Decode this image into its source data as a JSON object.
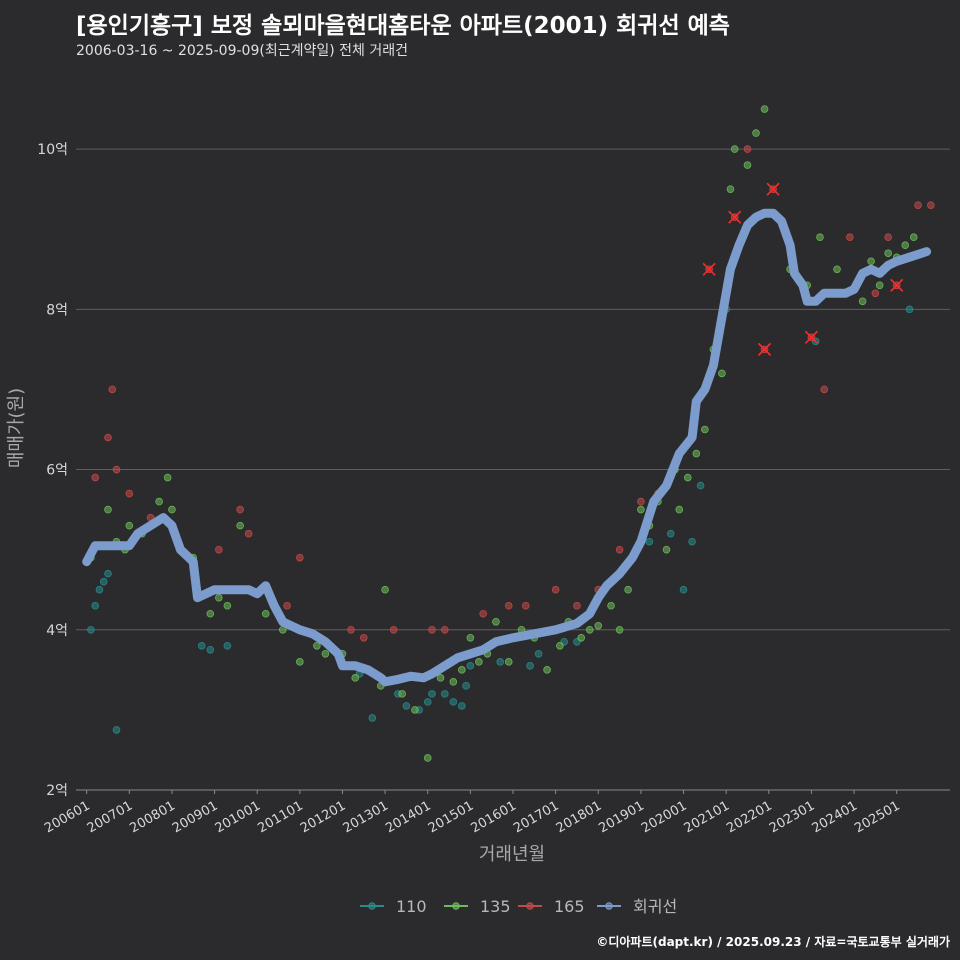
{
  "header": {
    "title": "[용인기흥구] 보정 솔뫼마을현대홈타운 아파트(2001) 회귀선 예측",
    "subtitle": "2006-03-16 ~ 2025-09-09(최근계약일) 전체 거래건"
  },
  "footer": {
    "credit": "©디아파트(dapt.kr) / 2025.09.23 / 자료=국토교통부 실거래가"
  },
  "colors": {
    "background": "#2b2b2d",
    "grid": "#5e5e60",
    "s110": "#2a8a8a",
    "s135": "#6dbb5a",
    "s165": "#c24a4a",
    "regression": "#7b9ccc",
    "marker_x": "#ff2a2a"
  },
  "chart_data": {
    "type": "scatter",
    "xlabel": "거래년월",
    "ylabel": "매매가(원)",
    "ylim": [
      2,
      10.8
    ],
    "y_ticks": [
      {
        "value": 2,
        "label": "2억"
      },
      {
        "value": 4,
        "label": "4억"
      },
      {
        "value": 6,
        "label": "6억"
      },
      {
        "value": 8,
        "label": "8억"
      },
      {
        "value": 10,
        "label": "10억"
      }
    ],
    "x_ticks": [
      "200601",
      "200701",
      "200801",
      "200901",
      "201001",
      "201101",
      "201201",
      "201301",
      "201401",
      "201501",
      "201601",
      "201701",
      "201801",
      "201901",
      "202001",
      "202101",
      "202201",
      "202301",
      "202401",
      "202501"
    ],
    "legend": {
      "position": "bottom",
      "items": [
        {
          "label": "110",
          "color": "#2a8a8a"
        },
        {
          "label": "135",
          "color": "#6dbb5a"
        },
        {
          "label": "165",
          "color": "#c24a4a"
        },
        {
          "label": "회귀선",
          "color": "#7b9ccc"
        }
      ]
    },
    "regression": [
      [
        2006.0,
        4.85
      ],
      [
        2006.2,
        5.05
      ],
      [
        2006.8,
        5.05
      ],
      [
        2007.0,
        5.05
      ],
      [
        2007.2,
        5.2
      ],
      [
        2007.5,
        5.3
      ],
      [
        2007.8,
        5.4
      ],
      [
        2008.0,
        5.3
      ],
      [
        2008.2,
        5.0
      ],
      [
        2008.5,
        4.85
      ],
      [
        2008.6,
        4.4
      ],
      [
        2008.8,
        4.45
      ],
      [
        2009.0,
        4.5
      ],
      [
        2009.5,
        4.5
      ],
      [
        2009.8,
        4.5
      ],
      [
        2010.0,
        4.45
      ],
      [
        2010.2,
        4.55
      ],
      [
        2010.4,
        4.3
      ],
      [
        2010.6,
        4.1
      ],
      [
        2011.0,
        4.0
      ],
      [
        2011.3,
        3.95
      ],
      [
        2011.6,
        3.85
      ],
      [
        2011.9,
        3.7
      ],
      [
        2012.0,
        3.55
      ],
      [
        2012.3,
        3.55
      ],
      [
        2012.6,
        3.5
      ],
      [
        2012.9,
        3.4
      ],
      [
        2013.0,
        3.35
      ],
      [
        2013.3,
        3.38
      ],
      [
        2013.6,
        3.42
      ],
      [
        2013.9,
        3.4
      ],
      [
        2014.1,
        3.45
      ],
      [
        2014.4,
        3.55
      ],
      [
        2014.7,
        3.65
      ],
      [
        2015.0,
        3.7
      ],
      [
        2015.3,
        3.75
      ],
      [
        2015.6,
        3.85
      ],
      [
        2016.0,
        3.9
      ],
      [
        2016.5,
        3.95
      ],
      [
        2017.0,
        4.0
      ],
      [
        2017.5,
        4.08
      ],
      [
        2017.8,
        4.2
      ],
      [
        2018.0,
        4.4
      ],
      [
        2018.2,
        4.55
      ],
      [
        2018.5,
        4.7
      ],
      [
        2018.8,
        4.9
      ],
      [
        2019.0,
        5.1
      ],
      [
        2019.3,
        5.6
      ],
      [
        2019.6,
        5.8
      ],
      [
        2019.9,
        6.2
      ],
      [
        2020.2,
        6.4
      ],
      [
        2020.3,
        6.85
      ],
      [
        2020.5,
        7.0
      ],
      [
        2020.7,
        7.3
      ],
      [
        2020.9,
        7.9
      ],
      [
        2021.1,
        8.5
      ],
      [
        2021.3,
        8.8
      ],
      [
        2021.5,
        9.05
      ],
      [
        2021.7,
        9.15
      ],
      [
        2021.9,
        9.2
      ],
      [
        2022.1,
        9.2
      ],
      [
        2022.3,
        9.1
      ],
      [
        2022.5,
        8.8
      ],
      [
        2022.6,
        8.45
      ],
      [
        2022.8,
        8.3
      ],
      [
        2022.9,
        8.1
      ],
      [
        2023.1,
        8.1
      ],
      [
        2023.3,
        8.2
      ],
      [
        2023.6,
        8.2
      ],
      [
        2023.8,
        8.2
      ],
      [
        2024.0,
        8.25
      ],
      [
        2024.2,
        8.45
      ],
      [
        2024.4,
        8.5
      ],
      [
        2024.6,
        8.45
      ],
      [
        2024.8,
        8.55
      ],
      [
        2025.0,
        8.6
      ],
      [
        2025.3,
        8.65
      ],
      [
        2025.7,
        8.72
      ]
    ],
    "series": [
      {
        "name": "110",
        "points": [
          [
            2006.1,
            4.0
          ],
          [
            2006.2,
            4.3
          ],
          [
            2006.3,
            4.5
          ],
          [
            2006.4,
            4.6
          ],
          [
            2006.5,
            4.7
          ],
          [
            2006.7,
            2.75
          ],
          [
            2008.7,
            3.8
          ],
          [
            2008.9,
            3.75
          ],
          [
            2009.3,
            3.8
          ],
          [
            2011.9,
            3.7
          ],
          [
            2012.4,
            3.45
          ],
          [
            2012.7,
            2.9
          ],
          [
            2013.0,
            3.35
          ],
          [
            2013.3,
            3.2
          ],
          [
            2013.5,
            3.05
          ],
          [
            2013.8,
            3.0
          ],
          [
            2014.0,
            3.1
          ],
          [
            2014.1,
            3.2
          ],
          [
            2014.4,
            3.2
          ],
          [
            2014.6,
            3.1
          ],
          [
            2014.8,
            3.05
          ],
          [
            2014.9,
            3.3
          ],
          [
            2015.0,
            3.55
          ],
          [
            2015.7,
            3.6
          ],
          [
            2016.4,
            3.55
          ],
          [
            2016.6,
            3.7
          ],
          [
            2017.2,
            3.85
          ],
          [
            2017.5,
            3.85
          ],
          [
            2019.2,
            5.1
          ],
          [
            2019.7,
            5.2
          ],
          [
            2020.0,
            4.5
          ],
          [
            2020.2,
            5.1
          ],
          [
            2020.4,
            5.8
          ],
          [
            2021.0,
            8.0
          ],
          [
            2021.4,
            8.9
          ],
          [
            2023.1,
            7.6
          ],
          [
            2025.3,
            8.0
          ]
        ]
      },
      {
        "name": "135",
        "points": [
          [
            2006.1,
            4.9
          ],
          [
            2006.5,
            5.5
          ],
          [
            2006.7,
            5.1
          ],
          [
            2006.9,
            5.0
          ],
          [
            2007.0,
            5.3
          ],
          [
            2007.3,
            5.2
          ],
          [
            2007.7,
            5.6
          ],
          [
            2007.9,
            5.9
          ],
          [
            2008.0,
            5.5
          ],
          [
            2008.5,
            4.9
          ],
          [
            2008.9,
            4.2
          ],
          [
            2009.1,
            4.4
          ],
          [
            2009.3,
            4.3
          ],
          [
            2009.6,
            5.3
          ],
          [
            2009.8,
            4.5
          ],
          [
            2010.2,
            4.2
          ],
          [
            2010.6,
            4.0
          ],
          [
            2011.0,
            3.6
          ],
          [
            2011.4,
            3.8
          ],
          [
            2011.6,
            3.7
          ],
          [
            2012.0,
            3.7
          ],
          [
            2012.3,
            3.4
          ],
          [
            2012.6,
            3.5
          ],
          [
            2012.9,
            3.3
          ],
          [
            2013.0,
            4.5
          ],
          [
            2013.4,
            3.2
          ],
          [
            2013.7,
            3.0
          ],
          [
            2014.0,
            2.4
          ],
          [
            2014.3,
            3.4
          ],
          [
            2014.6,
            3.35
          ],
          [
            2014.8,
            3.5
          ],
          [
            2015.0,
            3.9
          ],
          [
            2015.2,
            3.6
          ],
          [
            2015.4,
            3.7
          ],
          [
            2015.6,
            4.1
          ],
          [
            2015.9,
            3.6
          ],
          [
            2016.2,
            4.0
          ],
          [
            2016.5,
            3.9
          ],
          [
            2016.8,
            3.5
          ],
          [
            2017.1,
            3.8
          ],
          [
            2017.3,
            4.1
          ],
          [
            2017.6,
            3.9
          ],
          [
            2017.8,
            4.0
          ],
          [
            2018.0,
            4.05
          ],
          [
            2018.3,
            4.3
          ],
          [
            2018.5,
            4.0
          ],
          [
            2018.7,
            4.5
          ],
          [
            2019.0,
            5.5
          ],
          [
            2019.2,
            5.3
          ],
          [
            2019.4,
            5.6
          ],
          [
            2019.6,
            5.0
          ],
          [
            2019.8,
            6.0
          ],
          [
            2019.9,
            5.5
          ],
          [
            2020.1,
            5.9
          ],
          [
            2020.3,
            6.2
          ],
          [
            2020.5,
            6.5
          ],
          [
            2020.7,
            7.5
          ],
          [
            2020.9,
            7.2
          ],
          [
            2021.1,
            9.5
          ],
          [
            2021.2,
            10.0
          ],
          [
            2021.5,
            9.8
          ],
          [
            2021.7,
            10.2
          ],
          [
            2021.9,
            10.5
          ],
          [
            2022.0,
            9.2
          ],
          [
            2022.5,
            8.5
          ],
          [
            2022.9,
            8.3
          ],
          [
            2023.2,
            8.9
          ],
          [
            2023.6,
            8.5
          ],
          [
            2024.2,
            8.1
          ],
          [
            2024.4,
            8.6
          ],
          [
            2024.6,
            8.3
          ],
          [
            2024.8,
            8.7
          ],
          [
            2025.0,
            8.65
          ],
          [
            2025.2,
            8.8
          ],
          [
            2025.4,
            8.9
          ]
        ]
      },
      {
        "name": "165",
        "points": [
          [
            2006.2,
            5.9
          ],
          [
            2006.5,
            6.4
          ],
          [
            2006.6,
            7.0
          ],
          [
            2006.7,
            6.0
          ],
          [
            2007.0,
            5.7
          ],
          [
            2007.5,
            5.4
          ],
          [
            2009.1,
            5.0
          ],
          [
            2009.6,
            5.5
          ],
          [
            2009.8,
            5.2
          ],
          [
            2010.7,
            4.3
          ],
          [
            2011.0,
            4.9
          ],
          [
            2012.2,
            4.0
          ],
          [
            2012.5,
            3.9
          ],
          [
            2013.2,
            4.0
          ],
          [
            2014.1,
            4.0
          ],
          [
            2014.4,
            4.0
          ],
          [
            2015.3,
            4.2
          ],
          [
            2015.9,
            4.3
          ],
          [
            2016.3,
            4.3
          ],
          [
            2017.0,
            4.5
          ],
          [
            2017.5,
            4.3
          ],
          [
            2018.0,
            4.5
          ],
          [
            2018.5,
            5.0
          ],
          [
            2019.0,
            5.6
          ],
          [
            2019.4,
            5.7
          ],
          [
            2020.6,
            8.5
          ],
          [
            2021.2,
            9.15
          ],
          [
            2021.5,
            10.0
          ],
          [
            2021.9,
            7.5
          ],
          [
            2022.1,
            9.5
          ],
          [
            2023.0,
            7.65
          ],
          [
            2023.3,
            7.0
          ],
          [
            2023.9,
            8.9
          ],
          [
            2024.5,
            8.2
          ],
          [
            2024.8,
            8.9
          ],
          [
            2025.0,
            8.3
          ],
          [
            2025.5,
            9.3
          ],
          [
            2025.8,
            9.3
          ]
        ]
      }
    ],
    "highlighted": [
      [
        2020.6,
        8.5
      ],
      [
        2021.2,
        9.15
      ],
      [
        2021.9,
        7.5
      ],
      [
        2022.1,
        9.5
      ],
      [
        2023.0,
        7.65
      ],
      [
        2025.0,
        8.3
      ]
    ]
  }
}
